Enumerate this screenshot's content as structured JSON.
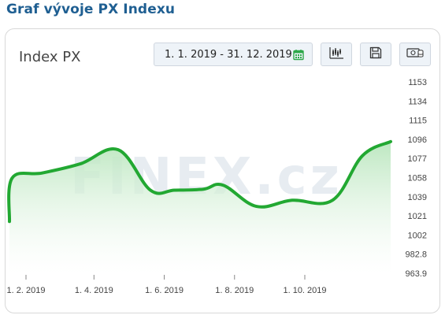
{
  "page_title": "Graf vývoje PX Indexu",
  "chart_title": "Index PX",
  "date_range": "1. 1. 2019 - 31. 12. 2019",
  "watermark": "FINEX.cz",
  "icons": [
    "calendar-icon",
    "candlestick-chart-icon",
    "save-icon",
    "export-icon"
  ],
  "colors": {
    "title": "#1f5f92",
    "line": "#22a832",
    "area_top": "#b9e6bd",
    "area_bottom": "#ffffff"
  },
  "chart_data": {
    "type": "area",
    "title": "Index PX",
    "xlabel": "",
    "ylabel": "",
    "x_ticks": [
      "1. 2. 2019",
      "1. 4. 2019",
      "1. 6. 2019",
      "1. 8. 2019",
      "1. 10. 2019"
    ],
    "y_ticks": [
      "1153",
      "1134",
      "1115",
      "1096",
      "1077",
      "1058",
      "1039",
      "1021",
      "1002",
      "982.8",
      "963.9"
    ],
    "ylim": [
      963.9,
      1153
    ],
    "grid": false,
    "series": [
      {
        "x": [
          "2019-01-01",
          "2019-01-20",
          "2019-02-15",
          "2019-03-20",
          "2019-04-22",
          "2019-05-20",
          "2019-06-10",
          "2019-07-05",
          "2019-07-22",
          "2019-08-20",
          "2019-09-20",
          "2019-10-25",
          "2019-11-20",
          "2019-12-31"
        ],
        "values": [
          1015,
          1058,
          1063,
          1072,
          1086,
          1046,
          1046,
          1047,
          1051,
          1030,
          1036,
          1036,
          1080,
          1094
        ]
      }
    ]
  }
}
